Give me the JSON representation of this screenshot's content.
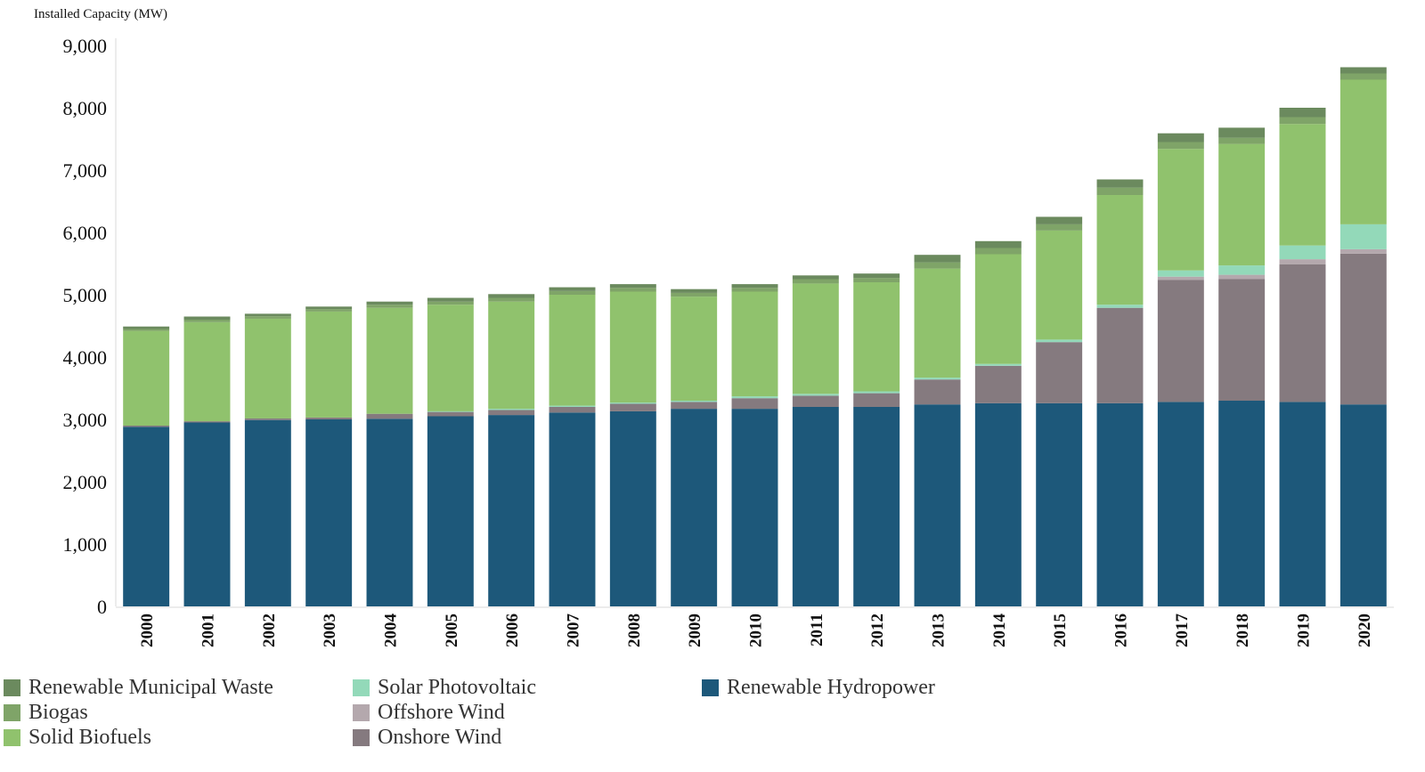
{
  "chart_data": {
    "type": "bar",
    "stacked": true,
    "title": "",
    "ylabel": "Installed Capacity (MW)",
    "xlabel": "",
    "ylim": [
      0,
      9000
    ],
    "yticks": [
      0,
      1000,
      2000,
      3000,
      4000,
      5000,
      6000,
      7000,
      8000,
      9000
    ],
    "ytick_labels": [
      "0",
      "1,000",
      "2,000",
      "3,000",
      "4,000",
      "5,000",
      "6,000",
      "7,000",
      "8,000",
      "9,000"
    ],
    "categories": [
      "2000",
      "2001",
      "2002",
      "2003",
      "2004",
      "2005",
      "2006",
      "2007",
      "2008",
      "2009",
      "2010",
      "2011",
      "2012",
      "2013",
      "2014",
      "2015",
      "2016",
      "2017",
      "2018",
      "2019",
      "2020"
    ],
    "grid": false,
    "legend_position": "bottom",
    "series": [
      {
        "name": "Renewable Hydropower",
        "color": "#1d587a",
        "values": [
          2880,
          2950,
          2990,
          3000,
          3010,
          3050,
          3070,
          3110,
          3130,
          3170,
          3170,
          3200,
          3200,
          3240,
          3260,
          3260,
          3260,
          3280,
          3300,
          3280,
          3240
        ]
      },
      {
        "name": "Onshore Wind",
        "color": "#857a7f",
        "values": [
          20,
          20,
          25,
          30,
          80,
          70,
          80,
          90,
          120,
          110,
          170,
          180,
          220,
          400,
          600,
          980,
          1530,
          1960,
          1950,
          2210,
          2420
        ]
      },
      {
        "name": "Offshore Wind",
        "color": "#b4a8ad",
        "values": [
          0,
          0,
          0,
          0,
          0,
          0,
          0,
          0,
          0,
          0,
          0,
          0,
          0,
          0,
          0,
          0,
          0,
          50,
          70,
          80,
          70
        ]
      },
      {
        "name": "Solar Photovoltaic",
        "color": "#93d9b9",
        "values": [
          0,
          0,
          0,
          0,
          0,
          10,
          20,
          20,
          20,
          20,
          30,
          30,
          30,
          30,
          30,
          40,
          50,
          100,
          150,
          220,
          400
        ]
      },
      {
        "name": "Solid Biofuels",
        "color": "#90c26d",
        "values": [
          1520,
          1590,
          1600,
          1700,
          1700,
          1710,
          1720,
          1780,
          1780,
          1670,
          1680,
          1770,
          1750,
          1750,
          1760,
          1750,
          1760,
          1950,
          1950,
          1950,
          2320
        ]
      },
      {
        "name": "Biogas",
        "color": "#7fa468",
        "values": [
          30,
          40,
          40,
          40,
          50,
          50,
          60,
          60,
          60,
          60,
          60,
          70,
          70,
          100,
          100,
          100,
          120,
          110,
          100,
          110,
          100
        ]
      },
      {
        "name": "Renewable Municipal Waste",
        "color": "#6b8a5e",
        "values": [
          40,
          50,
          40,
          40,
          50,
          60,
          60,
          60,
          60,
          60,
          60,
          60,
          70,
          120,
          110,
          120,
          130,
          140,
          160,
          150,
          100
        ]
      }
    ]
  },
  "legend_layout": [
    [
      "Renewable Municipal Waste",
      "Solar Photovoltaic",
      "Renewable Hydropower"
    ],
    [
      "Biogas",
      "Offshore Wind"
    ],
    [
      "Solid Biofuels",
      "Onshore Wind"
    ]
  ]
}
